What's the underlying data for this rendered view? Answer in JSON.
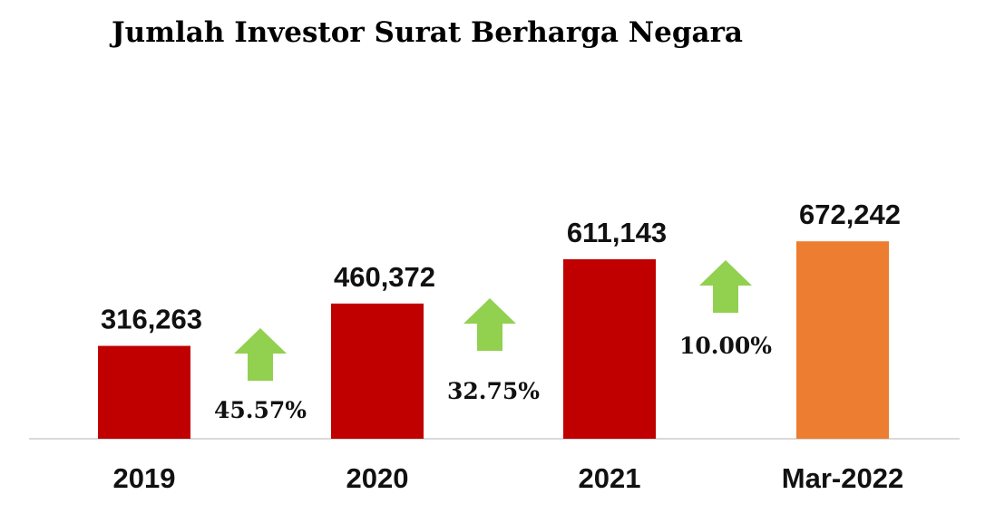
{
  "title": "Jumlah Investor Surat Berharga Negara",
  "chart_data": {
    "type": "bar",
    "title": "Jumlah Investor Surat Berharga Negara",
    "categories": [
      "2019",
      "2020",
      "2021",
      "Mar-2022"
    ],
    "values": [
      316263,
      460372,
      611143,
      672242
    ],
    "value_labels": [
      "316,263",
      "460,372",
      "611,143",
      "672,242"
    ],
    "bar_colors": [
      "#C00000",
      "#C00000",
      "#C00000",
      "#ED7D31"
    ],
    "growth": [
      {
        "label": "45.57%",
        "between": [
          "2019",
          "2020"
        ]
      },
      {
        "label": "32.75%",
        "between": [
          "2020",
          "2021"
        ]
      },
      {
        "label": "10.00%",
        "between": [
          "2021",
          "Mar-2022"
        ]
      }
    ],
    "arrow_color": "#92D050",
    "arrow_icon": "up-arrow-icon",
    "xlabel": "",
    "ylabel": "",
    "grid": false
  }
}
